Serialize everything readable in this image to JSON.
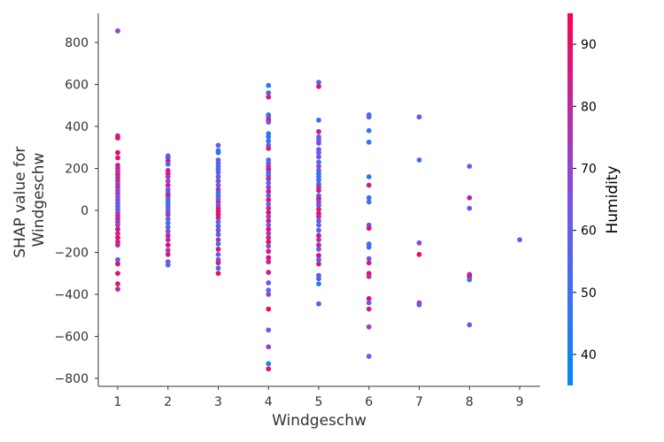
{
  "chart_data": {
    "type": "scatter",
    "xlabel": "Windgeschw",
    "ylabel_lines": [
      "SHAP value for",
      "Windgeschw"
    ],
    "x_ticks": [
      1,
      2,
      3,
      4,
      5,
      6,
      7,
      8,
      9
    ],
    "x_tick_labels": [
      "1",
      "2",
      "3",
      "4",
      "5",
      "6",
      "7",
      "8",
      "9"
    ],
    "xlim": [
      0.6,
      9.4
    ],
    "y_ticks": [
      -800,
      -600,
      -400,
      -200,
      0,
      200,
      400,
      600,
      800
    ],
    "y_tick_labels": [
      "−800",
      "−600",
      "−400",
      "−200",
      "0",
      "200",
      "400",
      "600",
      "800"
    ],
    "ylim": [
      -840,
      940
    ],
    "colorbar": {
      "label": "Humidity",
      "range": [
        35,
        95
      ],
      "ticks": [
        40,
        50,
        60,
        70,
        80,
        90
      ],
      "tick_labels": [
        "40",
        "50",
        "60",
        "70",
        "80",
        "90"
      ],
      "colors": [
        "#008afb",
        "#7c52e8",
        "#ff0052"
      ]
    },
    "points": [
      {
        "x": 1,
        "y": 855,
        "h": 70
      },
      {
        "x": 1,
        "y": 355,
        "h": 85
      },
      {
        "x": 1,
        "y": 345,
        "h": 88
      },
      {
        "x": 1,
        "y": 275,
        "h": 90
      },
      {
        "x": 1,
        "y": 250,
        "h": 88
      },
      {
        "x": 1,
        "y": 215,
        "h": 85
      },
      {
        "x": 1,
        "y": 200,
        "h": 80
      },
      {
        "x": 1,
        "y": 185,
        "h": 75
      },
      {
        "x": 1,
        "y": 170,
        "h": 85
      },
      {
        "x": 1,
        "y": 155,
        "h": 82
      },
      {
        "x": 1,
        "y": 140,
        "h": 78
      },
      {
        "x": 1,
        "y": 125,
        "h": 72
      },
      {
        "x": 1,
        "y": 110,
        "h": 80
      },
      {
        "x": 1,
        "y": 95,
        "h": 68
      },
      {
        "x": 1,
        "y": 80,
        "h": 75
      },
      {
        "x": 1,
        "y": 65,
        "h": 65
      },
      {
        "x": 1,
        "y": 50,
        "h": 70
      },
      {
        "x": 1,
        "y": 35,
        "h": 60
      },
      {
        "x": 1,
        "y": 20,
        "h": 58
      },
      {
        "x": 1,
        "y": 5,
        "h": 62
      },
      {
        "x": 1,
        "y": -10,
        "h": 66
      },
      {
        "x": 1,
        "y": -25,
        "h": 80
      },
      {
        "x": 1,
        "y": -40,
        "h": 85
      },
      {
        "x": 1,
        "y": -55,
        "h": 75
      },
      {
        "x": 1,
        "y": -70,
        "h": 70
      },
      {
        "x": 1,
        "y": -90,
        "h": 88
      },
      {
        "x": 1,
        "y": -110,
        "h": 82
      },
      {
        "x": 1,
        "y": -130,
        "h": 90
      },
      {
        "x": 1,
        "y": -150,
        "h": 86
      },
      {
        "x": 1,
        "y": -165,
        "h": 78
      },
      {
        "x": 1,
        "y": -235,
        "h": 62
      },
      {
        "x": 1,
        "y": -255,
        "h": 88
      },
      {
        "x": 1,
        "y": -300,
        "h": 90
      },
      {
        "x": 1,
        "y": -350,
        "h": 85
      },
      {
        "x": 1,
        "y": -375,
        "h": 80
      },
      {
        "x": 2,
        "y": 260,
        "h": 60
      },
      {
        "x": 2,
        "y": 250,
        "h": 58
      },
      {
        "x": 2,
        "y": 235,
        "h": 85
      },
      {
        "x": 2,
        "y": 220,
        "h": 50
      },
      {
        "x": 2,
        "y": 190,
        "h": 80
      },
      {
        "x": 2,
        "y": 175,
        "h": 88
      },
      {
        "x": 2,
        "y": 160,
        "h": 75
      },
      {
        "x": 2,
        "y": 140,
        "h": 70
      },
      {
        "x": 2,
        "y": 120,
        "h": 85
      },
      {
        "x": 2,
        "y": 100,
        "h": 65
      },
      {
        "x": 2,
        "y": 85,
        "h": 55
      },
      {
        "x": 2,
        "y": 70,
        "h": 90
      },
      {
        "x": 2,
        "y": 55,
        "h": 60
      },
      {
        "x": 2,
        "y": 40,
        "h": 48
      },
      {
        "x": 2,
        "y": 25,
        "h": 52
      },
      {
        "x": 2,
        "y": 10,
        "h": 62
      },
      {
        "x": 2,
        "y": -5,
        "h": 55
      },
      {
        "x": 2,
        "y": -20,
        "h": 75
      },
      {
        "x": 2,
        "y": -40,
        "h": 50
      },
      {
        "x": 2,
        "y": -60,
        "h": 58
      },
      {
        "x": 2,
        "y": -80,
        "h": 52
      },
      {
        "x": 2,
        "y": -100,
        "h": 70
      },
      {
        "x": 2,
        "y": -120,
        "h": 82
      },
      {
        "x": 2,
        "y": -140,
        "h": 78
      },
      {
        "x": 2,
        "y": -165,
        "h": 88
      },
      {
        "x": 2,
        "y": -190,
        "h": 75
      },
      {
        "x": 2,
        "y": -210,
        "h": 85
      },
      {
        "x": 2,
        "y": -245,
        "h": 55
      },
      {
        "x": 2,
        "y": -260,
        "h": 60
      },
      {
        "x": 3,
        "y": 310,
        "h": 60
      },
      {
        "x": 3,
        "y": 285,
        "h": 45
      },
      {
        "x": 3,
        "y": 275,
        "h": 48
      },
      {
        "x": 3,
        "y": 240,
        "h": 62
      },
      {
        "x": 3,
        "y": 225,
        "h": 55
      },
      {
        "x": 3,
        "y": 210,
        "h": 58
      },
      {
        "x": 3,
        "y": 195,
        "h": 50
      },
      {
        "x": 3,
        "y": 180,
        "h": 65
      },
      {
        "x": 3,
        "y": 160,
        "h": 52
      },
      {
        "x": 3,
        "y": 140,
        "h": 70
      },
      {
        "x": 3,
        "y": 120,
        "h": 60
      },
      {
        "x": 3,
        "y": 100,
        "h": 75
      },
      {
        "x": 3,
        "y": 85,
        "h": 55
      },
      {
        "x": 3,
        "y": 70,
        "h": 48
      },
      {
        "x": 3,
        "y": 55,
        "h": 62
      },
      {
        "x": 3,
        "y": 40,
        "h": 80
      },
      {
        "x": 3,
        "y": 25,
        "h": 58
      },
      {
        "x": 3,
        "y": 10,
        "h": 85
      },
      {
        "x": 3,
        "y": -5,
        "h": 88
      },
      {
        "x": 3,
        "y": -20,
        "h": 90
      },
      {
        "x": 3,
        "y": -35,
        "h": 85
      },
      {
        "x": 3,
        "y": -55,
        "h": 60
      },
      {
        "x": 3,
        "y": -75,
        "h": 52
      },
      {
        "x": 3,
        "y": -95,
        "h": 70
      },
      {
        "x": 3,
        "y": -115,
        "h": 55
      },
      {
        "x": 3,
        "y": -140,
        "h": 80
      },
      {
        "x": 3,
        "y": -160,
        "h": 50
      },
      {
        "x": 3,
        "y": -185,
        "h": 88
      },
      {
        "x": 3,
        "y": -210,
        "h": 60
      },
      {
        "x": 3,
        "y": -235,
        "h": 65
      },
      {
        "x": 3,
        "y": -250,
        "h": 85
      },
      {
        "x": 3,
        "y": -275,
        "h": 50
      },
      {
        "x": 3,
        "y": -300,
        "h": 90
      },
      {
        "x": 4,
        "y": 595,
        "h": 42
      },
      {
        "x": 4,
        "y": 560,
        "h": 60
      },
      {
        "x": 4,
        "y": 540,
        "h": 85
      },
      {
        "x": 4,
        "y": 455,
        "h": 55
      },
      {
        "x": 4,
        "y": 445,
        "h": 58
      },
      {
        "x": 4,
        "y": 430,
        "h": 88
      },
      {
        "x": 4,
        "y": 420,
        "h": 65
      },
      {
        "x": 4,
        "y": 365,
        "h": 45
      },
      {
        "x": 4,
        "y": 350,
        "h": 50
      },
      {
        "x": 4,
        "y": 330,
        "h": 48
      },
      {
        "x": 4,
        "y": 310,
        "h": 55
      },
      {
        "x": 4,
        "y": 295,
        "h": 82
      },
      {
        "x": 4,
        "y": 240,
        "h": 52
      },
      {
        "x": 4,
        "y": 225,
        "h": 58
      },
      {
        "x": 4,
        "y": 210,
        "h": 70
      },
      {
        "x": 4,
        "y": 195,
        "h": 90
      },
      {
        "x": 4,
        "y": 180,
        "h": 50
      },
      {
        "x": 4,
        "y": 165,
        "h": 62
      },
      {
        "x": 4,
        "y": 150,
        "h": 80
      },
      {
        "x": 4,
        "y": 130,
        "h": 55
      },
      {
        "x": 4,
        "y": 110,
        "h": 72
      },
      {
        "x": 4,
        "y": 90,
        "h": 85
      },
      {
        "x": 4,
        "y": 70,
        "h": 60
      },
      {
        "x": 4,
        "y": 50,
        "h": 88
      },
      {
        "x": 4,
        "y": 30,
        "h": 65
      },
      {
        "x": 4,
        "y": 10,
        "h": 78
      },
      {
        "x": 4,
        "y": -10,
        "h": 90
      },
      {
        "x": 4,
        "y": -30,
        "h": 70
      },
      {
        "x": 4,
        "y": -50,
        "h": 85
      },
      {
        "x": 4,
        "y": -70,
        "h": 62
      },
      {
        "x": 4,
        "y": -90,
        "h": 88
      },
      {
        "x": 4,
        "y": -110,
        "h": 75
      },
      {
        "x": 4,
        "y": -130,
        "h": 82
      },
      {
        "x": 4,
        "y": -150,
        "h": 90
      },
      {
        "x": 4,
        "y": -170,
        "h": 68
      },
      {
        "x": 4,
        "y": -195,
        "h": 85
      },
      {
        "x": 4,
        "y": -225,
        "h": 88
      },
      {
        "x": 4,
        "y": -245,
        "h": 80
      },
      {
        "x": 4,
        "y": -295,
        "h": 85
      },
      {
        "x": 4,
        "y": -345,
        "h": 60
      },
      {
        "x": 4,
        "y": -380,
        "h": 55
      },
      {
        "x": 4,
        "y": -400,
        "h": 70
      },
      {
        "x": 4,
        "y": -470,
        "h": 92
      },
      {
        "x": 4,
        "y": -570,
        "h": 65
      },
      {
        "x": 4,
        "y": -650,
        "h": 70
      },
      {
        "x": 4,
        "y": -730,
        "h": 40
      },
      {
        "x": 4,
        "y": -755,
        "h": 88
      },
      {
        "x": 5,
        "y": 610,
        "h": 55
      },
      {
        "x": 5,
        "y": 590,
        "h": 88
      },
      {
        "x": 5,
        "y": 430,
        "h": 50
      },
      {
        "x": 5,
        "y": 375,
        "h": 85
      },
      {
        "x": 5,
        "y": 350,
        "h": 60
      },
      {
        "x": 5,
        "y": 335,
        "h": 58
      },
      {
        "x": 5,
        "y": 320,
        "h": 70
      },
      {
        "x": 5,
        "y": 290,
        "h": 52
      },
      {
        "x": 5,
        "y": 275,
        "h": 65
      },
      {
        "x": 5,
        "y": 255,
        "h": 62
      },
      {
        "x": 5,
        "y": 230,
        "h": 55
      },
      {
        "x": 5,
        "y": 210,
        "h": 68
      },
      {
        "x": 5,
        "y": 190,
        "h": 60
      },
      {
        "x": 5,
        "y": 175,
        "h": 45
      },
      {
        "x": 5,
        "y": 160,
        "h": 48
      },
      {
        "x": 5,
        "y": 145,
        "h": 55
      },
      {
        "x": 5,
        "y": 125,
        "h": 50
      },
      {
        "x": 5,
        "y": 110,
        "h": 78
      },
      {
        "x": 5,
        "y": 95,
        "h": 85
      },
      {
        "x": 5,
        "y": 70,
        "h": 52
      },
      {
        "x": 5,
        "y": 55,
        "h": 88
      },
      {
        "x": 5,
        "y": 40,
        "h": 70
      },
      {
        "x": 5,
        "y": 25,
        "h": 60
      },
      {
        "x": 5,
        "y": 5,
        "h": 85
      },
      {
        "x": 5,
        "y": -15,
        "h": 90
      },
      {
        "x": 5,
        "y": -30,
        "h": 80
      },
      {
        "x": 5,
        "y": -50,
        "h": 58
      },
      {
        "x": 5,
        "y": -70,
        "h": 62
      },
      {
        "x": 5,
        "y": -95,
        "h": 52
      },
      {
        "x": 5,
        "y": -120,
        "h": 88
      },
      {
        "x": 5,
        "y": -140,
        "h": 75
      },
      {
        "x": 5,
        "y": -165,
        "h": 82
      },
      {
        "x": 5,
        "y": -185,
        "h": 65
      },
      {
        "x": 5,
        "y": -215,
        "h": 88
      },
      {
        "x": 5,
        "y": -235,
        "h": 55
      },
      {
        "x": 5,
        "y": -255,
        "h": 85
      },
      {
        "x": 5,
        "y": -310,
        "h": 60
      },
      {
        "x": 5,
        "y": -325,
        "h": 58
      },
      {
        "x": 5,
        "y": -350,
        "h": 45
      },
      {
        "x": 5,
        "y": -445,
        "h": 52
      },
      {
        "x": 6,
        "y": 455,
        "h": 52
      },
      {
        "x": 6,
        "y": 445,
        "h": 58
      },
      {
        "x": 6,
        "y": 380,
        "h": 45
      },
      {
        "x": 6,
        "y": 325,
        "h": 48
      },
      {
        "x": 6,
        "y": 160,
        "h": 45
      },
      {
        "x": 6,
        "y": 120,
        "h": 85
      },
      {
        "x": 6,
        "y": 60,
        "h": 55
      },
      {
        "x": 6,
        "y": 40,
        "h": 48
      },
      {
        "x": 6,
        "y": -70,
        "h": 55
      },
      {
        "x": 6,
        "y": -85,
        "h": 88
      },
      {
        "x": 6,
        "y": -160,
        "h": 52
      },
      {
        "x": 6,
        "y": -175,
        "h": 50
      },
      {
        "x": 6,
        "y": -230,
        "h": 60
      },
      {
        "x": 6,
        "y": -250,
        "h": 85
      },
      {
        "x": 6,
        "y": -300,
        "h": 88
      },
      {
        "x": 6,
        "y": -315,
        "h": 80
      },
      {
        "x": 6,
        "y": -420,
        "h": 88
      },
      {
        "x": 6,
        "y": -440,
        "h": 60
      },
      {
        "x": 6,
        "y": -470,
        "h": 85
      },
      {
        "x": 6,
        "y": -555,
        "h": 70
      },
      {
        "x": 6,
        "y": -695,
        "h": 58
      },
      {
        "x": 7,
        "y": 445,
        "h": 65
      },
      {
        "x": 7,
        "y": 240,
        "h": 52
      },
      {
        "x": 7,
        "y": -155,
        "h": 68
      },
      {
        "x": 7,
        "y": -210,
        "h": 92
      },
      {
        "x": 7,
        "y": -440,
        "h": 72
      },
      {
        "x": 7,
        "y": -450,
        "h": 65
      },
      {
        "x": 8,
        "y": 210,
        "h": 60
      },
      {
        "x": 8,
        "y": 60,
        "h": 82
      },
      {
        "x": 8,
        "y": 10,
        "h": 62
      },
      {
        "x": 8,
        "y": -305,
        "h": 75
      },
      {
        "x": 8,
        "y": -315,
        "h": 88
      },
      {
        "x": 8,
        "y": -330,
        "h": 48
      },
      {
        "x": 8,
        "y": -545,
        "h": 60
      },
      {
        "x": 9,
        "y": -140,
        "h": 62
      }
    ]
  }
}
